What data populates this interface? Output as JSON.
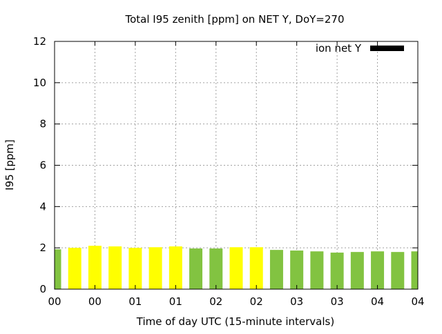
{
  "chart_data": {
    "type": "bar",
    "title": "Total I95 zenith [ppm] on NET Y, DoY=270",
    "xlabel": "Time of day UTC (15-minute intervals)",
    "ylabel": "I95 [ppm]",
    "ylim": [
      0,
      12
    ],
    "yticks": [
      "0",
      "2",
      "4",
      "6",
      "8",
      "10",
      "12"
    ],
    "xlim_minutes": [
      0,
      270
    ],
    "xticks": [
      "00",
      "00",
      "01",
      "01",
      "02",
      "02",
      "03",
      "03",
      "04",
      "04"
    ],
    "grid": true,
    "legend": {
      "position": "top-right",
      "entries": [
        "ion net Y"
      ]
    },
    "colors": {
      "green": "#82c341",
      "yellow": "#ffff00",
      "legend_sample": "#000000",
      "grid": "#a0a0a0"
    },
    "bars": [
      {
        "minute": 0,
        "value": 1.93,
        "color": "green"
      },
      {
        "minute": 15,
        "value": 2.0,
        "color": "yellow"
      },
      {
        "minute": 30,
        "value": 2.1,
        "color": "yellow"
      },
      {
        "minute": 45,
        "value": 2.07,
        "color": "yellow"
      },
      {
        "minute": 60,
        "value": 2.0,
        "color": "yellow"
      },
      {
        "minute": 75,
        "value": 2.03,
        "color": "yellow"
      },
      {
        "minute": 90,
        "value": 2.07,
        "color": "yellow"
      },
      {
        "minute": 105,
        "value": 1.97,
        "color": "green"
      },
      {
        "minute": 120,
        "value": 1.97,
        "color": "green"
      },
      {
        "minute": 135,
        "value": 2.03,
        "color": "yellow"
      },
      {
        "minute": 150,
        "value": 2.03,
        "color": "yellow"
      },
      {
        "minute": 165,
        "value": 1.9,
        "color": "green"
      },
      {
        "minute": 180,
        "value": 1.87,
        "color": "green"
      },
      {
        "minute": 195,
        "value": 1.83,
        "color": "green"
      },
      {
        "minute": 210,
        "value": 1.77,
        "color": "green"
      },
      {
        "minute": 225,
        "value": 1.8,
        "color": "green"
      },
      {
        "minute": 240,
        "value": 1.83,
        "color": "green"
      },
      {
        "minute": 255,
        "value": 1.8,
        "color": "green"
      },
      {
        "minute": 270,
        "value": 1.83,
        "color": "green"
      }
    ]
  }
}
